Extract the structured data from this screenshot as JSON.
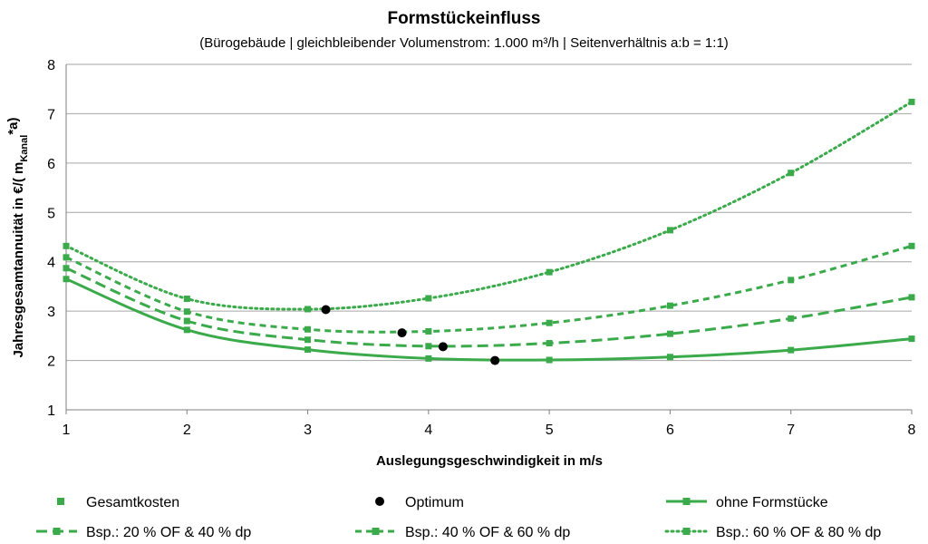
{
  "chart_data": {
    "type": "line",
    "title": "Formstückeinfluss",
    "subtitle": "(Bürogebäude | gleichbleibender Volumenstrom: 1.000 m³/h | Seitenverhältnis a:b = 1:1)",
    "xlabel": "Auslegungsgeschwindigkeit in m/s",
    "ylabel_main": "Jahresgesamtannuität in €/( m",
    "ylabel_sub": "Kanal",
    "ylabel_sup": "*a)",
    "xlim": [
      1,
      8
    ],
    "ylim": [
      1,
      8
    ],
    "x_ticks": [
      "1",
      "2",
      "3",
      "4",
      "5",
      "6",
      "7",
      "8"
    ],
    "y_ticks": [
      "1",
      "2",
      "3",
      "4",
      "5",
      "6",
      "7",
      "8"
    ],
    "grid": true,
    "legend_position": "bottom",
    "color": "#3aaa4a",
    "optimum_color": "#000000",
    "series": [
      {
        "name": "ohne Formstücke",
        "style": "solid",
        "x": [
          1,
          2,
          3,
          4,
          5,
          6,
          7,
          8
        ],
        "y": [
          3.65,
          2.62,
          2.22,
          2.04,
          2.01,
          2.07,
          2.21,
          2.44
        ]
      },
      {
        "name": "Bsp.: 20 % OF & 40 % dp",
        "style": "long-dash",
        "x": [
          1,
          2,
          3,
          4,
          5,
          6,
          7,
          8
        ],
        "y": [
          3.87,
          2.8,
          2.42,
          2.29,
          2.35,
          2.54,
          2.85,
          3.28
        ]
      },
      {
        "name": "Bsp.: 40 % OF & 60 % dp",
        "style": "short-dash",
        "x": [
          1,
          2,
          3,
          4,
          5,
          6,
          7,
          8
        ],
        "y": [
          4.09,
          2.99,
          2.63,
          2.59,
          2.76,
          3.11,
          3.63,
          4.32
        ]
      },
      {
        "name": "Bsp.: 60 % OF & 80 % dp",
        "style": "dotted",
        "x": [
          1,
          2,
          3,
          4,
          5,
          6,
          7,
          8
        ],
        "y": [
          4.32,
          3.25,
          3.04,
          3.26,
          3.79,
          4.64,
          5.8,
          7.24
        ]
      }
    ],
    "optimum": {
      "x": [
        4.55,
        4.12,
        3.78,
        3.15
      ],
      "y": [
        2.0,
        2.28,
        2.56,
        3.03
      ]
    },
    "legend": [
      {
        "label": "Gesamtkosten",
        "symbol": "square"
      },
      {
        "label": "Optimum",
        "symbol": "circle"
      },
      {
        "label": "ohne Formstücke",
        "symbol": "solid"
      },
      {
        "label": "Bsp.: 20 % OF & 40 % dp",
        "symbol": "long-dash"
      },
      {
        "label": "Bsp.: 40 % OF & 60 % dp",
        "symbol": "short-dash"
      },
      {
        "label": "Bsp.: 60 % OF & 80 % dp",
        "symbol": "dotted"
      }
    ]
  }
}
